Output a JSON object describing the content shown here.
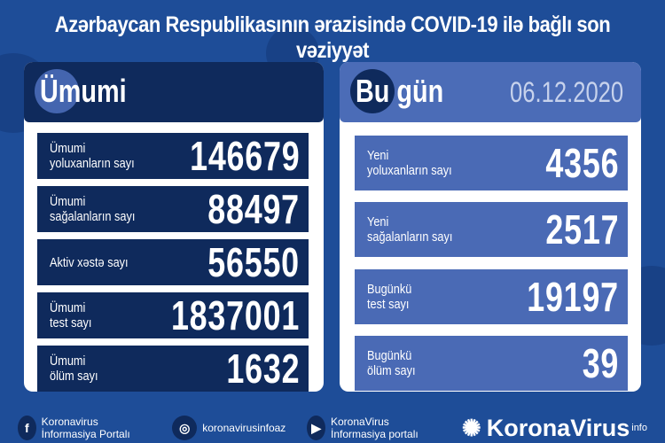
{
  "title": "Azərbaycan Respublikasının ərazisində COVID-19 ilə bağlı son vəziyyət",
  "total": {
    "heading": "Ümumi",
    "rows": [
      {
        "label": "Ümumi\nyoluxanların sayı",
        "value": "146679"
      },
      {
        "label": "Ümumi\nsağalanların sayı",
        "value": "88497"
      },
      {
        "label": "Aktiv xəstə sayı",
        "value": "56550"
      },
      {
        "label": "Ümumi\ntest sayı",
        "value": "1837001"
      },
      {
        "label": "Ümumi\nölüm sayı",
        "value": "1632"
      }
    ]
  },
  "today": {
    "heading": "Bu gün",
    "date": "06.12.2020",
    "rows": [
      {
        "label": "Yeni\nyoluxanların sayı",
        "value": "4356"
      },
      {
        "label": "Yeni\nsağalanların sayı",
        "value": "2517"
      },
      {
        "label": "Bugünkü\ntest sayı",
        "value": "19197"
      },
      {
        "label": "Bugünkü\nölüm sayı",
        "value": "39"
      }
    ]
  },
  "footer": {
    "facebook": "Koronavirus İnformasiya Portalı",
    "instagram": "koronavirusinfoaz",
    "youtube": "KoronaVirus İnformasiya portalı",
    "brand": "KoronaVirus",
    "brand_sup": "info"
  },
  "colors": {
    "background": "#1e4d98",
    "navy": "#0f2a5c",
    "light_blue": "#4a6ab5"
  }
}
